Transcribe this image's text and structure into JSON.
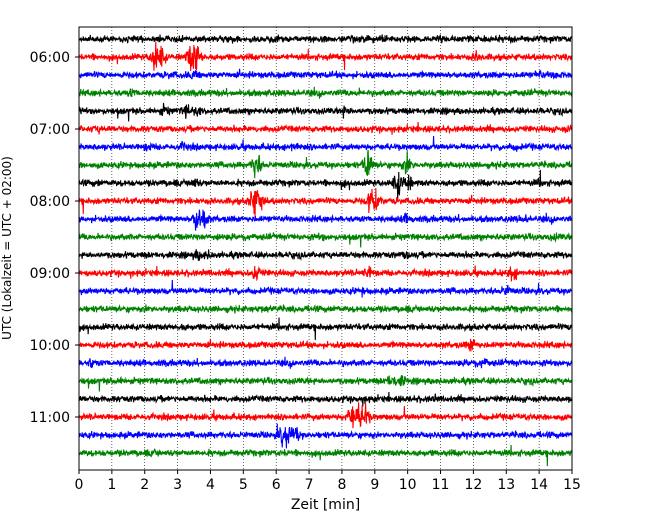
{
  "chart_data": {
    "type": "line",
    "title": "",
    "xlabel": "Zeit  [min]",
    "ylabel": "UTC (Lokalzeit = UTC + 02:00)",
    "xlim": [
      0,
      15
    ],
    "x_ticks": [
      "0",
      "1",
      "2",
      "3",
      "4",
      "5",
      "6",
      "7",
      "8",
      "9",
      "10",
      "11",
      "12",
      "13",
      "14",
      "15"
    ],
    "y_tick_labels": [
      "06:00",
      "07:00",
      "08:00",
      "09:00",
      "10:00",
      "11:00"
    ],
    "grid": "vertical dotted",
    "trace_interval_minutes": 15,
    "color_cycle": [
      "#000000",
      "#ff0000",
      "#0000ff",
      "#008000"
    ],
    "series": [
      {
        "start": "05:45",
        "events": [
          [
            4.7,
            0.4
          ],
          [
            6.0,
            0.5
          ],
          [
            9.3,
            0.4
          ],
          [
            11.0,
            0.5
          ],
          [
            13.1,
            0.3
          ]
        ]
      },
      {
        "start": "06:00",
        "events": [
          [
            2.3,
            4.0
          ],
          [
            2.5,
            3.0
          ],
          [
            3.4,
            3.5
          ],
          [
            3.6,
            4.0
          ],
          [
            12.1,
            1.0
          ]
        ]
      },
      {
        "start": "06:15",
        "events": [
          [
            2.8,
            0.4
          ],
          [
            3.5,
            1.0
          ],
          [
            14.0,
            0.8
          ],
          [
            14.5,
            0.6
          ]
        ]
      },
      {
        "start": "06:30",
        "events": [
          [
            1.6,
            0.6
          ],
          [
            5.7,
            0.4
          ],
          [
            8.5,
            0.3
          ]
        ]
      },
      {
        "start": "06:45",
        "events": [
          [
            2.6,
            1.0
          ],
          [
            3.3,
            1.5
          ],
          [
            3.6,
            1.0
          ],
          [
            8.1,
            1.2
          ]
        ]
      },
      {
        "start": "07:00",
        "events": [
          [
            0.6,
            0.4
          ],
          [
            14.9,
            0.5
          ]
        ]
      },
      {
        "start": "07:15",
        "events": [
          [
            2.1,
            0.7
          ],
          [
            3.2,
            0.8
          ],
          [
            6.5,
            0.9
          ],
          [
            13.3,
            0.5
          ]
        ]
      },
      {
        "start": "07:30",
        "events": [
          [
            5.4,
            4.0
          ],
          [
            8.8,
            5.0
          ],
          [
            10.0,
            3.0
          ]
        ]
      },
      {
        "start": "07:45",
        "events": [
          [
            0.6,
            0.5
          ],
          [
            3.5,
            1.2
          ],
          [
            8.0,
            0.5
          ],
          [
            9.7,
            4.0
          ],
          [
            10.0,
            2.0
          ],
          [
            14.0,
            0.7
          ]
        ]
      },
      {
        "start": "08:00",
        "events": [
          [
            5.3,
            4.0
          ],
          [
            5.5,
            3.0
          ],
          [
            8.9,
            4.0
          ],
          [
            9.1,
            2.0
          ]
        ]
      },
      {
        "start": "08:15",
        "events": [
          [
            3.6,
            4.0
          ],
          [
            3.8,
            2.5
          ],
          [
            10.0,
            1.0
          ],
          [
            13.5,
            0.7
          ]
        ]
      },
      {
        "start": "08:30",
        "events": [
          [
            4.2,
            0.6
          ],
          [
            5.0,
            0.5
          ],
          [
            7.4,
            0.4
          ],
          [
            14.5,
            0.5
          ]
        ]
      },
      {
        "start": "08:45",
        "events": [
          [
            3.6,
            1.0
          ],
          [
            3.9,
            0.8
          ],
          [
            10.0,
            0.8
          ]
        ]
      },
      {
        "start": "09:00",
        "events": [
          [
            5.4,
            2.5
          ],
          [
            8.8,
            1.5
          ],
          [
            13.2,
            1.8
          ]
        ]
      },
      {
        "start": "09:15",
        "events": [
          [
            8.6,
            0.5
          ],
          [
            13.0,
            1.2
          ]
        ]
      },
      {
        "start": "09:30",
        "events": [
          [
            2.1,
            0.4
          ],
          [
            5.7,
            0.5
          ],
          [
            7.8,
            0.4
          ]
        ]
      },
      {
        "start": "09:45",
        "events": [
          [
            3.1,
            0.4
          ],
          [
            6.0,
            0.3
          ]
        ]
      },
      {
        "start": "10:00",
        "events": [
          [
            11.9,
            1.0
          ],
          [
            12.0,
            0.8
          ]
        ]
      },
      {
        "start": "10:15",
        "events": [
          [
            0.4,
            1.0
          ],
          [
            12.0,
            1.0
          ],
          [
            12.3,
            0.8
          ]
        ]
      },
      {
        "start": "10:30",
        "events": [
          [
            1.2,
            0.4
          ],
          [
            9.5,
            1.6
          ],
          [
            9.8,
            1.2
          ]
        ]
      },
      {
        "start": "10:45",
        "events": [
          [
            8.7,
            0.4
          ],
          [
            10.8,
            0.4
          ]
        ]
      },
      {
        "start": "11:00",
        "events": [
          [
            8.3,
            3.5
          ],
          [
            8.5,
            2.5
          ],
          [
            8.7,
            3.0
          ]
        ]
      },
      {
        "start": "11:15",
        "events": [
          [
            6.2,
            3.0
          ],
          [
            6.4,
            2.0
          ],
          [
            6.6,
            1.5
          ]
        ]
      },
      {
        "start": "11:30",
        "events": [
          [
            2.3,
            0.3
          ],
          [
            6.3,
            0.3
          ]
        ]
      }
    ]
  }
}
